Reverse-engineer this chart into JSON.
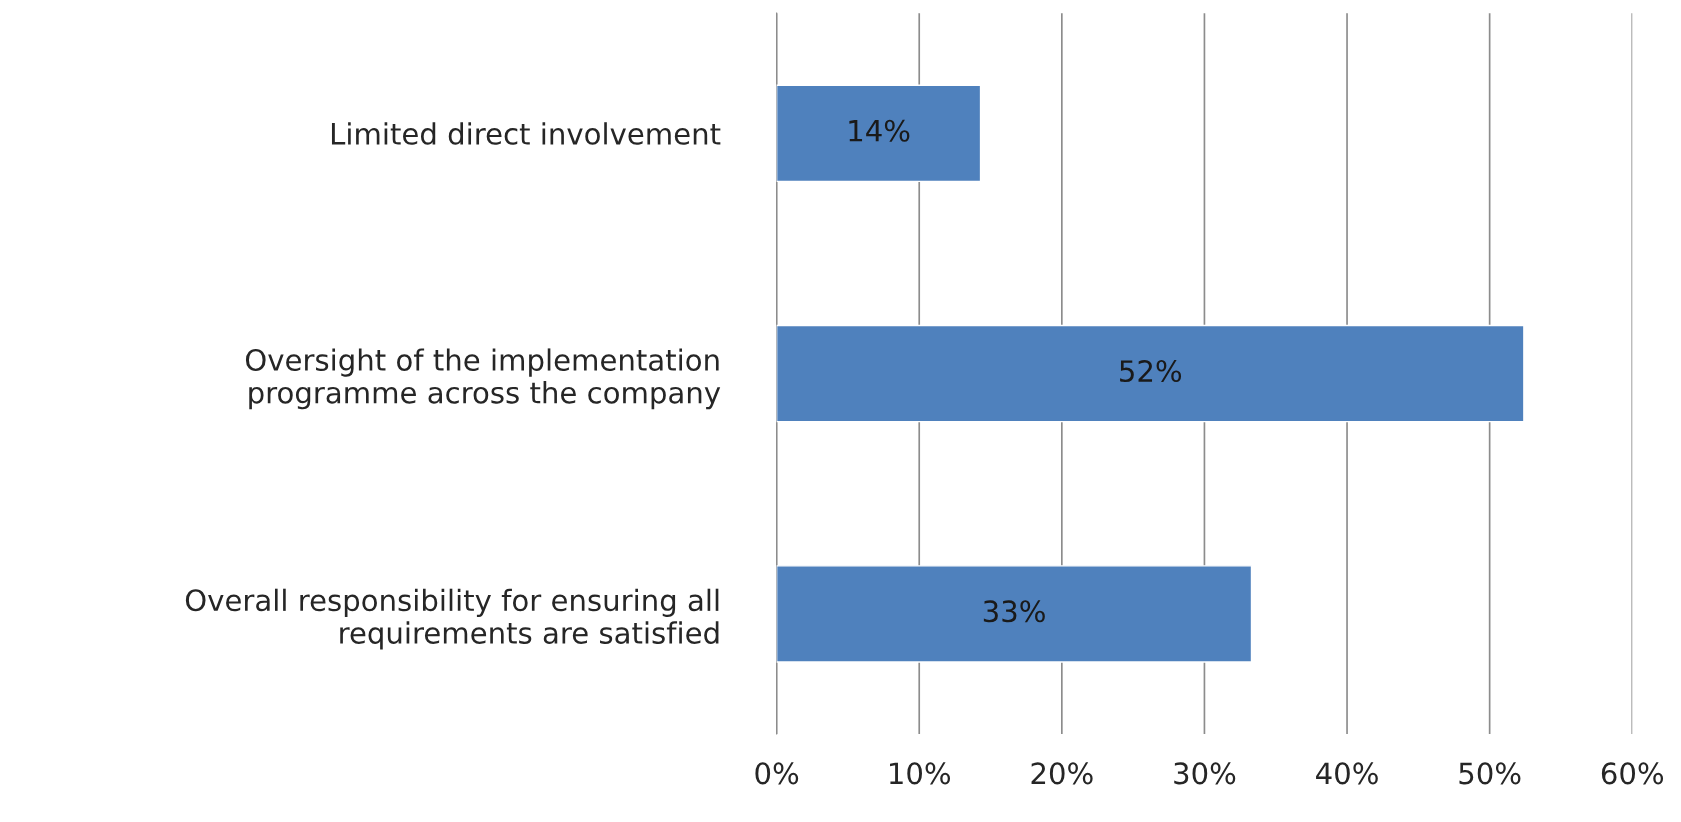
{
  "chart_data": {
    "type": "bar",
    "orientation": "horizontal",
    "categories": [
      "Limited direct involvement",
      "Oversight of the implementation\nprogramme across the company",
      "Overall responsibility for ensuring all\nrequirements are satisfied"
    ],
    "values": [
      14.3,
      52.4,
      33.3
    ],
    "color": "#4f81bd",
    "value_labels": [
      "14%",
      "52%",
      "33%"
    ],
    "xlim": [
      0,
      60
    ],
    "xticks": [
      {
        "value": 0,
        "label": "0%"
      },
      {
        "value": 10,
        "label": "10%"
      },
      {
        "value": 20,
        "label": "20%"
      },
      {
        "value": 30,
        "label": "30%"
      },
      {
        "value": 40,
        "label": "40%"
      },
      {
        "value": 50,
        "label": "50%"
      },
      {
        "value": 60,
        "label": "60%"
      }
    ],
    "grid": "x",
    "legend": false
  }
}
